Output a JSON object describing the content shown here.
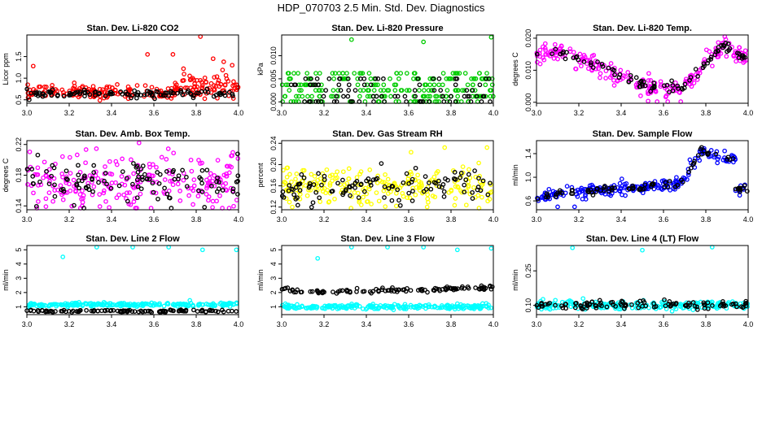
{
  "figure_title": "HDP_070703  2.5 Min. Std. Dev. Diagnostics",
  "chart_data": [
    {
      "type": "scatter",
      "title": "Stan. Dev. Li-820 CO2",
      "ylabel": "Licor ppm",
      "xlim": [
        3.0,
        4.0
      ],
      "ylim": [
        0.42,
        2.0
      ],
      "xticks": [
        3.0,
        3.2,
        3.4,
        3.6,
        3.8,
        4.0
      ],
      "xtick_labels": [
        "3.0",
        "3.2",
        "3.4",
        "3.6",
        "3.8",
        "4.0"
      ],
      "yticks": [
        0.5,
        1.0,
        1.5
      ],
      "ytick_labels": [
        "0.5",
        "1.0",
        "1.5"
      ],
      "series": [
        {
          "name": "primary",
          "color": "#ff0000",
          "base": 0.72,
          "noise": 0.08,
          "profile": "co2",
          "outliers": [
            [
              3.03,
              1.28
            ],
            [
              3.57,
              1.55
            ],
            [
              3.69,
              1.55
            ],
            [
              3.74,
              1.22
            ],
            [
              3.82,
              1.97
            ],
            [
              3.88,
              1.45
            ],
            [
              3.93,
              1.38
            ],
            [
              3.97,
              1.3
            ]
          ]
        },
        {
          "name": "secondary",
          "color": "#000000",
          "base": 0.64,
          "noise": 0.04,
          "count": 110
        }
      ]
    },
    {
      "type": "scatter",
      "title": "Stan. Dev. Li-820 Pressure",
      "ylabel": "kPa",
      "xlim": [
        3.0,
        4.0
      ],
      "ylim": [
        -0.0003,
        0.0145
      ],
      "xticks": [
        3.0,
        3.2,
        3.4,
        3.6,
        3.8,
        4.0
      ],
      "xtick_labels": [
        "3.0",
        "3.2",
        "3.4",
        "3.6",
        "3.8",
        "4.0"
      ],
      "yticks": [
        0.0,
        0.005,
        0.01
      ],
      "ytick_labels": [
        "0.000",
        "0.005",
        "0.010"
      ],
      "series": [
        {
          "name": "primary",
          "color": "#00cc00",
          "levels": [
            0,
            0.0012,
            0.0025,
            0.0037,
            0.005,
            0.0062
          ],
          "outliers": [
            [
              3.33,
              0.0135
            ],
            [
              3.67,
              0.013
            ],
            [
              3.99,
              0.014
            ]
          ]
        },
        {
          "name": "secondary",
          "color": "#000000",
          "levels": [
            0,
            0.0012,
            0.0025,
            0.0037,
            0.005
          ],
          "count": 90
        }
      ]
    },
    {
      "type": "scatter",
      "title": "Stan. Dev. Li-820 Temp.",
      "ylabel": "degrees C",
      "xlim": [
        3.0,
        4.0
      ],
      "ylim": [
        -0.0003,
        0.021
      ],
      "xticks": [
        3.0,
        3.2,
        3.4,
        3.6,
        3.8,
        4.0
      ],
      "xtick_labels": [
        "3.0",
        "3.2",
        "3.4",
        "3.6",
        "3.8",
        "4.0"
      ],
      "yticks": [
        0.0,
        0.01,
        0.02
      ],
      "ytick_labels": [
        "0.000",
        "0.010",
        "0.020"
      ],
      "series": [
        {
          "name": "primary",
          "color": "#ff00ff",
          "profile": "temp",
          "noise": 0.0015,
          "outliers": [
            [
              3.57,
              0.0002
            ],
            [
              3.62,
              0.0001
            ]
          ]
        },
        {
          "name": "secondary",
          "color": "#000000",
          "profile": "temp",
          "noise": 0.0008,
          "count": 90
        }
      ]
    },
    {
      "type": "scatter",
      "title": "Stan. Dev. Amb. Box Temp.",
      "ylabel": "degrees C",
      "xlim": [
        3.0,
        4.0
      ],
      "ylim": [
        0.135,
        0.225
      ],
      "xticks": [
        3.0,
        3.2,
        3.4,
        3.6,
        3.8,
        4.0
      ],
      "xtick_labels": [
        "3.0",
        "3.2",
        "3.4",
        "3.6",
        "3.8",
        "4.0"
      ],
      "yticks": [
        0.14,
        0.18,
        0.22
      ],
      "ytick_labels": [
        "0.14",
        "0.18",
        "0.22"
      ],
      "series": [
        {
          "name": "primary",
          "color": "#ff00ff",
          "base": 0.172,
          "noise": 0.018,
          "outliers": [
            [
              3.53,
              0.222
            ]
          ]
        },
        {
          "name": "secondary",
          "color": "#000000",
          "base": 0.172,
          "noise": 0.015,
          "count": 110
        }
      ]
    },
    {
      "type": "scatter",
      "title": "Stan. Dev. Gas Stream RH",
      "ylabel": "percent",
      "xlim": [
        3.0,
        4.0
      ],
      "ylim": [
        0.115,
        0.245
      ],
      "xticks": [
        3.0,
        3.2,
        3.4,
        3.6,
        3.8,
        4.0
      ],
      "xtick_labels": [
        "3.0",
        "3.2",
        "3.4",
        "3.6",
        "3.8",
        "4.0"
      ],
      "yticks": [
        0.12,
        0.16,
        0.2,
        0.24
      ],
      "ytick_labels": [
        "0.12",
        "0.16",
        "0.20",
        "0.24"
      ],
      "series": [
        {
          "name": "primary",
          "color": "#ffff00",
          "base": 0.16,
          "noise": 0.018,
          "outliers": [
            [
              3.77,
              0.232
            ],
            [
              3.97,
              0.232
            ],
            [
              3.05,
              0.12
            ]
          ]
        },
        {
          "name": "secondary",
          "color": "#000000",
          "base": 0.158,
          "noise": 0.016,
          "count": 110
        }
      ]
    },
    {
      "type": "scatter",
      "title": "Stan. Dev. Sample Flow",
      "ylabel": "ml/min",
      "xlim": [
        3.0,
        4.0
      ],
      "ylim": [
        0.45,
        1.62
      ],
      "xticks": [
        3.0,
        3.2,
        3.4,
        3.6,
        3.8,
        4.0
      ],
      "xtick_labels": [
        "3.0",
        "3.2",
        "3.4",
        "3.6",
        "3.8",
        "4.0"
      ],
      "yticks": [
        0.6,
        1.0,
        1.4
      ],
      "ytick_labels": [
        "0.6",
        "1.0",
        "1.4"
      ],
      "series": [
        {
          "name": "primary",
          "color": "#0000ff",
          "profile": "flow",
          "noise": 0.05,
          "outliers": [
            [
              3.1,
              0.5
            ],
            [
              3.18,
              0.5
            ]
          ]
        },
        {
          "name": "secondary",
          "color": "#000000",
          "profile": "flow",
          "noise": 0.03,
          "count": 90
        }
      ]
    },
    {
      "type": "scatter",
      "title": "Stan. Dev. Line 2 Flow",
      "ylabel": "ml/min",
      "xlim": [
        3.0,
        4.0
      ],
      "ylim": [
        0.45,
        5.3
      ],
      "xticks": [
        3.0,
        3.2,
        3.4,
        3.6,
        3.8,
        4.0
      ],
      "xtick_labels": [
        "3.0",
        "3.2",
        "3.4",
        "3.6",
        "3.8",
        "4.0"
      ],
      "yticks": [
        1,
        2,
        3,
        4,
        5
      ],
      "ytick_labels": [
        "1",
        "2",
        "3",
        "4",
        "5"
      ],
      "series": [
        {
          "name": "primary",
          "color": "#00ffff",
          "base": 1.15,
          "noise": 0.06,
          "outliers": [
            [
              3.17,
              4.5
            ],
            [
              3.33,
              5.3
            ],
            [
              3.5,
              5.3
            ],
            [
              3.67,
              5.3
            ],
            [
              3.83,
              5.0
            ],
            [
              3.99,
              5.0
            ],
            [
              3.77,
              1.45
            ]
          ]
        },
        {
          "name": "secondary",
          "color": "#000000",
          "base": 0.7,
          "noise": 0.04,
          "count": 110
        }
      ]
    },
    {
      "type": "scatter",
      "title": "Stan. Dev. Line 3 Flow",
      "ylabel": "ml/min",
      "xlim": [
        3.0,
        4.0
      ],
      "ylim": [
        0.45,
        5.3
      ],
      "xticks": [
        3.0,
        3.2,
        3.4,
        3.6,
        3.8,
        4.0
      ],
      "xtick_labels": [
        "3.0",
        "3.2",
        "3.4",
        "3.6",
        "3.8",
        "4.0"
      ],
      "yticks": [
        1,
        2,
        3,
        4,
        5
      ],
      "ytick_labels": [
        "1",
        "2",
        "3",
        "4",
        "5"
      ],
      "series": [
        {
          "name": "primary",
          "color": "#00ffff",
          "base": 1.0,
          "noise": 0.09,
          "outliers": [
            [
              3.17,
              4.4
            ],
            [
              3.33,
              5.2
            ],
            [
              3.5,
              5.2
            ],
            [
              3.67,
              5.2
            ],
            [
              3.83,
              5.0
            ],
            [
              3.99,
              5.1
            ]
          ]
        },
        {
          "name": "secondary",
          "color": "#000000",
          "profile": "line3",
          "noise": 0.08,
          "count": 110
        }
      ]
    },
    {
      "type": "scatter",
      "title": "Stan. Dev. Line 4 (LT) Flow",
      "ylabel": "ml/min",
      "xlim": [
        3.0,
        4.0
      ],
      "ylim": [
        0.06,
        0.36
      ],
      "xticks": [
        3.0,
        3.2,
        3.4,
        3.6,
        3.8,
        4.0
      ],
      "xtick_labels": [
        "3.0",
        "3.2",
        "3.4",
        "3.6",
        "3.8",
        "4.0"
      ],
      "yticks": [
        0.1,
        0.25
      ],
      "ytick_labels": [
        "0.10",
        "0.25"
      ],
      "series": [
        {
          "name": "primary",
          "color": "#00ffff",
          "base": 0.1,
          "noise": 0.009,
          "outliers": [
            [
              3.17,
              0.35
            ],
            [
              3.5,
              0.34
            ],
            [
              3.83,
              0.36
            ],
            [
              3.22,
              0.13
            ]
          ]
        },
        {
          "name": "secondary",
          "color": "#000000",
          "base": 0.102,
          "noise": 0.008,
          "count": 110
        }
      ]
    }
  ]
}
